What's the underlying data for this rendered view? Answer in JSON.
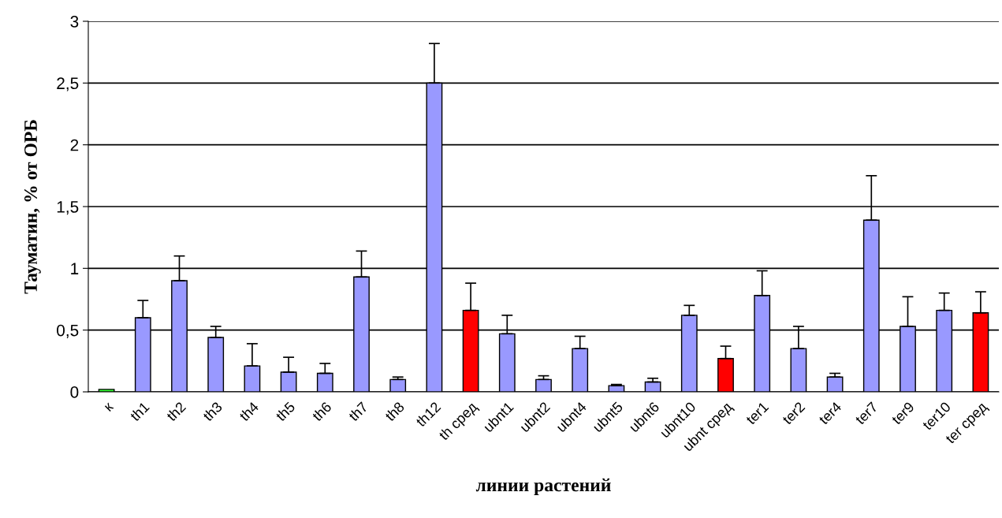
{
  "chart_data": {
    "type": "bar",
    "xlabel": "линии растений",
    "ylabel": "Тауматин, % от ОРБ",
    "categories": [
      "к",
      "th1",
      "th2",
      "th3",
      "th4",
      "th5",
      "th6",
      "th7",
      "th8",
      "th12",
      "th сред",
      "ubnt1",
      "ubnt2",
      "ubnt4",
      "ubnt5",
      "ubnt6",
      "ubnt10",
      "ubnt сред",
      "ter1",
      "ter2",
      "ter4",
      "ter7",
      "ter9",
      "ter10",
      "ter сред"
    ],
    "values": [
      0.02,
      0.6,
      0.9,
      0.44,
      0.21,
      0.16,
      0.15,
      0.93,
      0.1,
      2.5,
      0.66,
      0.47,
      0.1,
      0.35,
      0.05,
      0.08,
      0.62,
      0.27,
      0.78,
      0.35,
      0.12,
      1.39,
      0.53,
      0.66,
      0.64
    ],
    "errors": [
      null,
      [
        0.6,
        0.74
      ],
      [
        0.9,
        1.1
      ],
      [
        0.44,
        0.53
      ],
      [
        0.21,
        0.39
      ],
      [
        0.16,
        0.28
      ],
      [
        0.15,
        0.23
      ],
      [
        0.93,
        1.14
      ],
      [
        0.1,
        0.12
      ],
      [
        2.5,
        2.82
      ],
      [
        0.66,
        0.88
      ],
      [
        0.47,
        0.62
      ],
      [
        0.1,
        0.13
      ],
      [
        0.35,
        0.45
      ],
      [
        0.05,
        0.06
      ],
      [
        0.08,
        0.11
      ],
      [
        0.62,
        0.7
      ],
      [
        0.27,
        0.37
      ],
      [
        0.78,
        0.98
      ],
      [
        0.35,
        0.53
      ],
      [
        0.12,
        0.15
      ],
      [
        1.39,
        1.75
      ],
      [
        0.53,
        0.77
      ],
      [
        0.66,
        0.8
      ],
      [
        0.64,
        0.81
      ]
    ],
    "colors": [
      "#33ff33",
      "#9999ff",
      "#9999ff",
      "#9999ff",
      "#9999ff",
      "#9999ff",
      "#9999ff",
      "#9999ff",
      "#9999ff",
      "#9999ff",
      "#ff0000",
      "#9999ff",
      "#9999ff",
      "#9999ff",
      "#9999ff",
      "#9999ff",
      "#9999ff",
      "#ff0000",
      "#9999ff",
      "#9999ff",
      "#9999ff",
      "#9999ff",
      "#9999ff",
      "#9999ff",
      "#ff0000"
    ],
    "ylim": [
      0,
      3
    ],
    "yticks": [
      0,
      {
        "value": 0.5,
        "label": "0,5"
      },
      1,
      {
        "value": 1.5,
        "label": "1,5"
      },
      2,
      {
        "value": 2.5,
        "label": "2,5"
      },
      3
    ],
    "grid": "y"
  }
}
